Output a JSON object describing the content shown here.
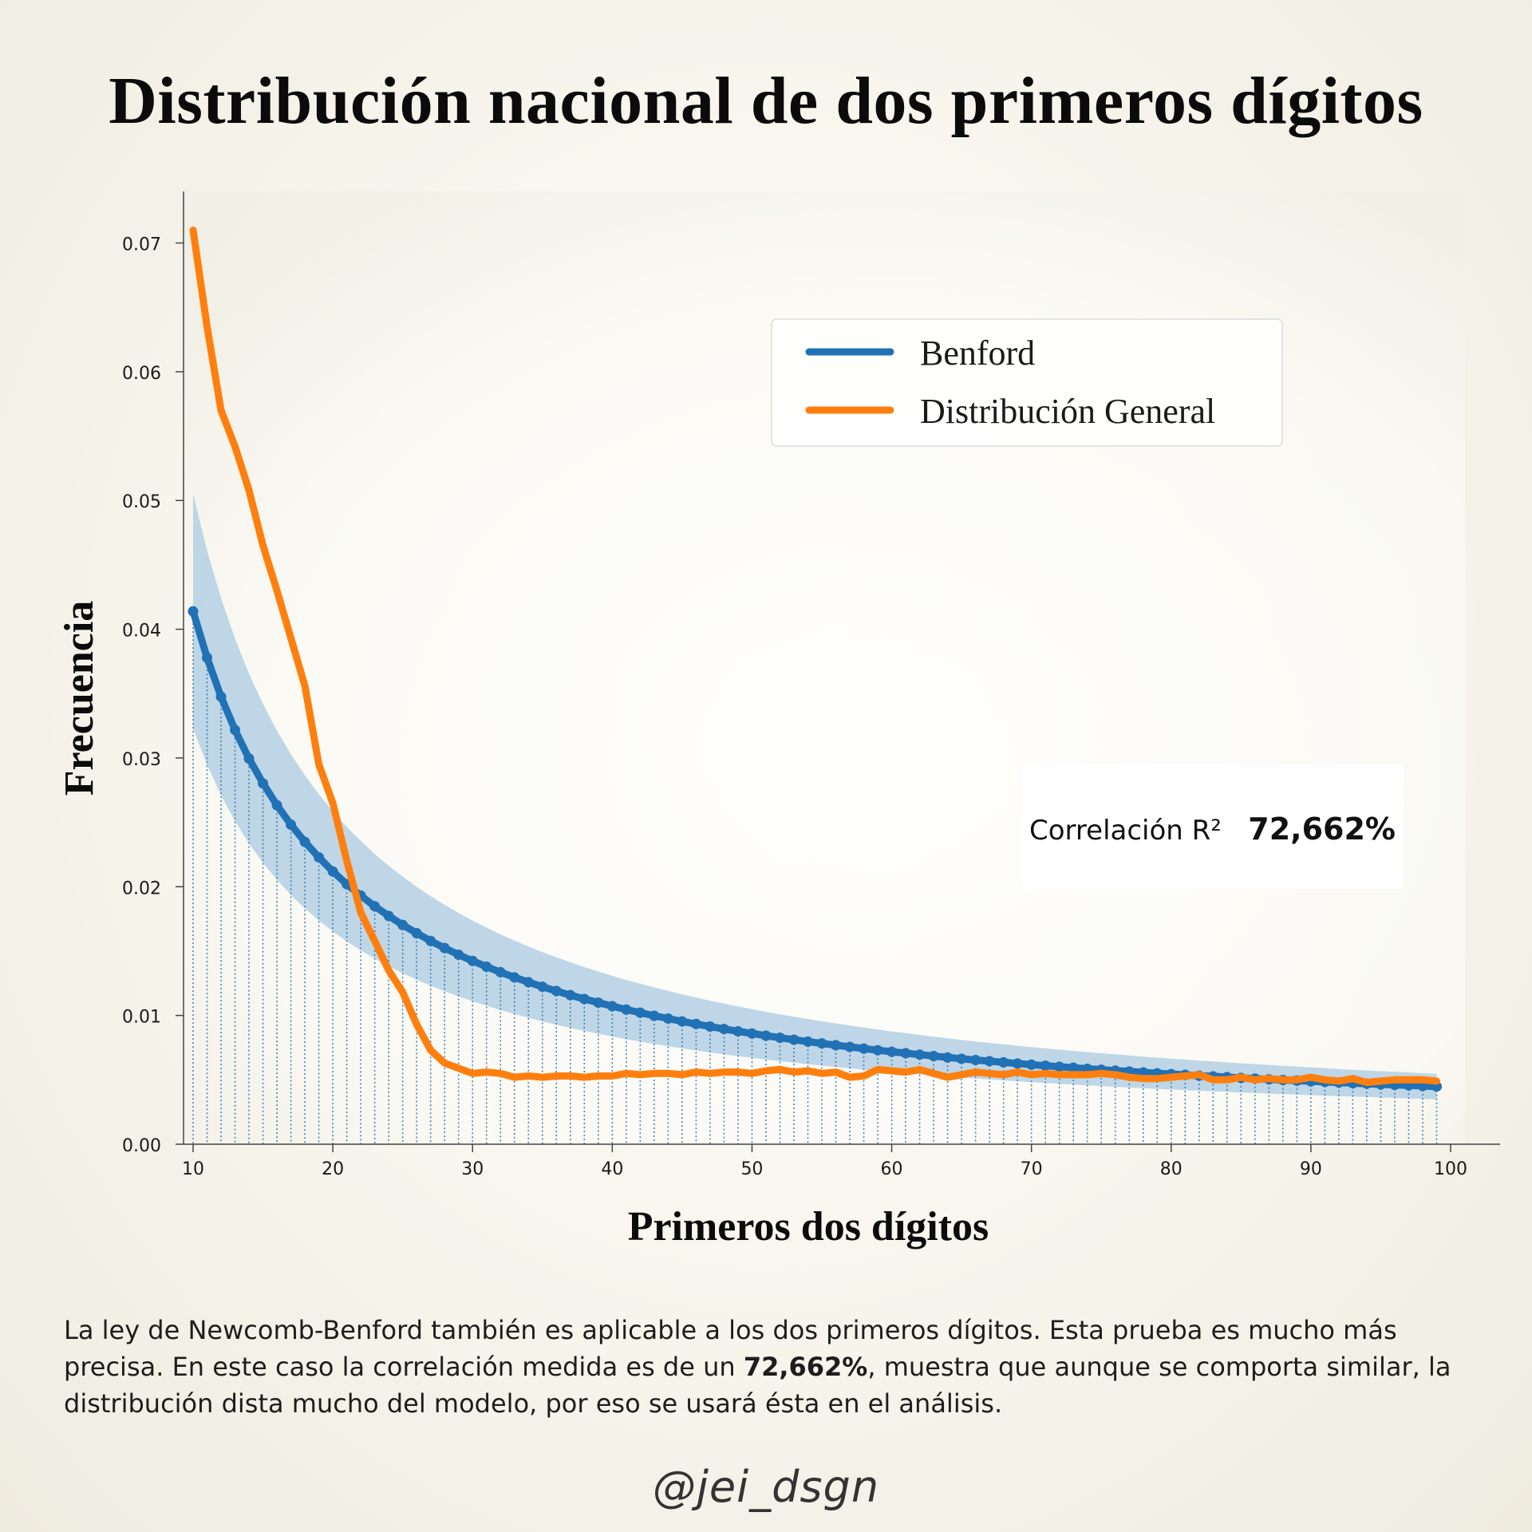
{
  "title": "Distribución nacional de dos primeros dígitos",
  "description": {
    "before": "La ley de Newcomb-Benford también es aplicable a los dos primeros dígitos. Esta prueba es mucho más precisa. En este caso la correlación medida es de un ",
    "highlight": "72,662%",
    "after": ", muestra que aunque se comporta similar, la distribución dista mucho del modelo, por eso se usará ésta en el análisis."
  },
  "handle": "@jei_dsgn",
  "colors": {
    "benford": "#2171b5",
    "general": "#ff7f0e",
    "band": "#b7d1e4"
  },
  "chart_data": {
    "type": "line",
    "title": "",
    "xlabel": "Primeros dos dígitos",
    "ylabel": "Frecuencia",
    "xlim": [
      10,
      100
    ],
    "ylim": [
      0,
      0.074
    ],
    "xticks": [
      10,
      20,
      30,
      40,
      50,
      60,
      70,
      80,
      90,
      100
    ],
    "yticks": [
      0.0,
      0.01,
      0.02,
      0.03,
      0.04,
      0.05,
      0.06,
      0.07
    ],
    "ytick_labels": [
      "0.00",
      "0.01",
      "0.02",
      "0.03",
      "0.04",
      "0.05",
      "0.06",
      "0.07"
    ],
    "legend_position": "top-right",
    "grid": false,
    "annotation": {
      "label": "Correlación R²",
      "value": "72,662%"
    },
    "band": {
      "lower_factor": 0.78,
      "upper_factor": 1.22
    },
    "series": [
      {
        "name": "Benford",
        "markers": true,
        "x": [
          10,
          11,
          12,
          13,
          14,
          15,
          16,
          17,
          18,
          19,
          20,
          21,
          22,
          23,
          24,
          25,
          26,
          27,
          28,
          29,
          30,
          31,
          32,
          33,
          34,
          35,
          36,
          37,
          38,
          39,
          40,
          41,
          42,
          43,
          44,
          45,
          46,
          47,
          48,
          49,
          50,
          51,
          52,
          53,
          54,
          55,
          56,
          57,
          58,
          59,
          60,
          61,
          62,
          63,
          64,
          65,
          66,
          67,
          68,
          69,
          70,
          71,
          72,
          73,
          74,
          75,
          76,
          77,
          78,
          79,
          80,
          81,
          82,
          83,
          84,
          85,
          86,
          87,
          88,
          89,
          90,
          91,
          92,
          93,
          94,
          95,
          96,
          97,
          98,
          99
        ],
        "values": [
          0.04139,
          0.03779,
          0.03476,
          0.03218,
          0.02996,
          0.02803,
          0.02633,
          0.02482,
          0.02348,
          0.02228,
          0.02119,
          0.0202,
          0.01931,
          0.01848,
          0.01773,
          0.01703,
          0.01639,
          0.01579,
          0.01524,
          0.01472,
          0.01424,
          0.01379,
          0.01336,
          0.01296,
          0.01259,
          0.01223,
          0.0119,
          0.01158,
          0.01128,
          0.011,
          0.01072,
          0.01046,
          0.01022,
          0.00998,
          0.00976,
          0.00954,
          0.00934,
          0.00914,
          0.00895,
          0.00877,
          0.0086,
          0.00843,
          0.00827,
          0.00812,
          0.00797,
          0.00783,
          0.00769,
          0.00756,
          0.00743,
          0.0073,
          0.00718,
          0.00707,
          0.00696,
          0.00685,
          0.00674,
          0.00664,
          0.00654,
          0.00645,
          0.00636,
          0.00627,
          0.00618,
          0.0061,
          0.00602,
          0.00594,
          0.00586,
          0.00579,
          0.00572,
          0.00565,
          0.00558,
          0.00551,
          0.00545,
          0.00539,
          0.00532,
          0.00527,
          0.00521,
          0.00515,
          0.0051,
          0.00504,
          0.00499,
          0.00494,
          0.00489,
          0.00484,
          0.00479,
          0.00474,
          0.0047,
          0.00465,
          0.00461,
          0.00457,
          0.00452,
          0.00448
        ]
      },
      {
        "name": "Distribución General",
        "markers": false,
        "x": [
          10,
          11,
          12,
          13,
          14,
          15,
          16,
          17,
          18,
          19,
          20,
          21,
          22,
          23,
          24,
          25,
          26,
          27,
          28,
          29,
          30,
          31,
          32,
          33,
          34,
          35,
          36,
          37,
          38,
          39,
          40,
          41,
          42,
          43,
          44,
          45,
          46,
          47,
          48,
          49,
          50,
          51,
          52,
          53,
          54,
          55,
          56,
          57,
          58,
          59,
          60,
          61,
          62,
          63,
          64,
          65,
          66,
          67,
          68,
          69,
          70,
          71,
          72,
          73,
          74,
          75,
          76,
          77,
          78,
          79,
          80,
          81,
          82,
          83,
          84,
          85,
          86,
          87,
          88,
          89,
          90,
          91,
          92,
          93,
          94,
          95,
          96,
          97,
          98,
          99
        ],
        "values": [
          0.071,
          0.0635,
          0.057,
          0.0542,
          0.0508,
          0.0465,
          0.043,
          0.0393,
          0.0356,
          0.0295,
          0.0265,
          0.022,
          0.018,
          0.0158,
          0.0135,
          0.0118,
          0.0093,
          0.0073,
          0.0063,
          0.0059,
          0.0055,
          0.0056,
          0.0055,
          0.0052,
          0.0053,
          0.0052,
          0.0053,
          0.0053,
          0.0052,
          0.0053,
          0.0053,
          0.0055,
          0.0054,
          0.0055,
          0.0055,
          0.0054,
          0.0056,
          0.0055,
          0.0056,
          0.0056,
          0.0055,
          0.0057,
          0.0058,
          0.0056,
          0.0057,
          0.0055,
          0.0056,
          0.0052,
          0.0053,
          0.0058,
          0.0057,
          0.0056,
          0.0058,
          0.0055,
          0.0052,
          0.0054,
          0.0056,
          0.0055,
          0.0054,
          0.0056,
          0.0054,
          0.0055,
          0.0054,
          0.0054,
          0.0054,
          0.0055,
          0.0054,
          0.0052,
          0.0051,
          0.0051,
          0.0052,
          0.0053,
          0.0054,
          0.005,
          0.005,
          0.0052,
          0.005,
          0.0051,
          0.005,
          0.005,
          0.0052,
          0.005,
          0.0049,
          0.0051,
          0.0048,
          0.0049,
          0.005,
          0.005,
          0.005,
          0.0049
        ]
      }
    ]
  }
}
